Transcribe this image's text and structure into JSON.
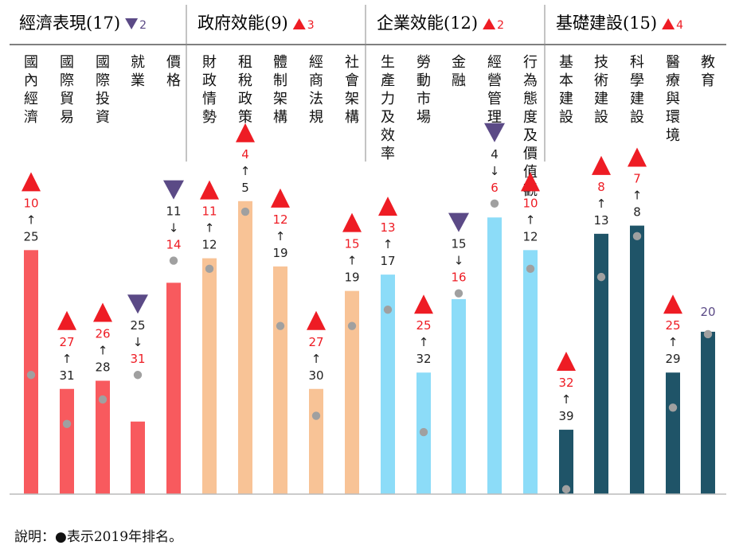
{
  "chart_data": {
    "type": "bar",
    "colors": {
      "economy": "#f85a5e",
      "government": "#f8c396",
      "business": "#8cdcf8",
      "infrastructure": "#1f5468",
      "up": "#ee1c24",
      "down": "#5b4a86",
      "dot": "#a0a0a0",
      "rank_up": "#ee1c24",
      "rank_down": "#5b4a86"
    },
    "y_scale": {
      "top_rank": 1,
      "bottom_rank": 40
    },
    "groups": [
      {
        "key": "economy",
        "title": "經濟表現(17)",
        "trend": "down",
        "change": "2"
      },
      {
        "key": "government",
        "title": "政府效能(9)",
        "trend": "up",
        "change": "3"
      },
      {
        "key": "business",
        "title": "企業效能(12)",
        "trend": "up",
        "change": "2"
      },
      {
        "key": "infrastructure",
        "title": "基礎建設(15)",
        "trend": "up",
        "change": "4"
      }
    ],
    "categories": [
      {
        "group": "economy",
        "label": "國內經濟",
        "rank_2020": 10,
        "rank_2019": 25,
        "trend": "up"
      },
      {
        "group": "economy",
        "label": "國際貿易",
        "rank_2020": 27,
        "rank_2019": 31,
        "trend": "up"
      },
      {
        "group": "economy",
        "label": "國際投資",
        "rank_2020": 26,
        "rank_2019": 28,
        "trend": "up"
      },
      {
        "group": "economy",
        "label": "就業",
        "rank_2020": 31,
        "rank_2019": 25,
        "trend": "down"
      },
      {
        "group": "economy",
        "label": "價格",
        "rank_2020": 14,
        "rank_2019": 11,
        "trend": "down"
      },
      {
        "group": "government",
        "label": "財政情勢",
        "rank_2020": 11,
        "rank_2019": 12,
        "trend": "up"
      },
      {
        "group": "government",
        "label": "租稅政策",
        "rank_2020": 4,
        "rank_2019": 5,
        "trend": "up"
      },
      {
        "group": "government",
        "label": "體制架構",
        "rank_2020": 12,
        "rank_2019": 19,
        "trend": "up"
      },
      {
        "group": "government",
        "label": "經商法規",
        "rank_2020": 27,
        "rank_2019": 30,
        "trend": "up"
      },
      {
        "group": "government",
        "label": "社會架構",
        "rank_2020": 15,
        "rank_2019": 19,
        "trend": "up"
      },
      {
        "group": "business",
        "label": "生產力及效率",
        "rank_2020": 13,
        "rank_2019": 17,
        "trend": "up"
      },
      {
        "group": "business",
        "label": "勞動市場",
        "rank_2020": 25,
        "rank_2019": 32,
        "trend": "up"
      },
      {
        "group": "business",
        "label": "金融",
        "rank_2020": 16,
        "rank_2019": 15,
        "trend": "down"
      },
      {
        "group": "business",
        "label": "經營管理",
        "rank_2020": 6,
        "rank_2019": 4,
        "trend": "down"
      },
      {
        "group": "business",
        "label": "行為態度及價值觀",
        "rank_2020": 10,
        "rank_2019": 12,
        "trend": "up"
      },
      {
        "group": "infrastructure",
        "label": "基本建設",
        "rank_2020": 32,
        "rank_2019": 39,
        "trend": "up"
      },
      {
        "group": "infrastructure",
        "label": "技術建設",
        "rank_2020": 8,
        "rank_2019": 13,
        "trend": "up"
      },
      {
        "group": "infrastructure",
        "label": "科學建設",
        "rank_2020": 7,
        "rank_2019": 8,
        "trend": "up"
      },
      {
        "group": "infrastructure",
        "label": "醫療與環境",
        "rank_2020": 25,
        "rank_2019": 29,
        "trend": "up"
      },
      {
        "group": "infrastructure",
        "label": "教育",
        "rank_2020": 20,
        "rank_2019": 20,
        "trend": "same"
      }
    ],
    "note": {
      "prefix": "說明：",
      "symbol": "●",
      "text": "表示2019年排名。"
    }
  }
}
